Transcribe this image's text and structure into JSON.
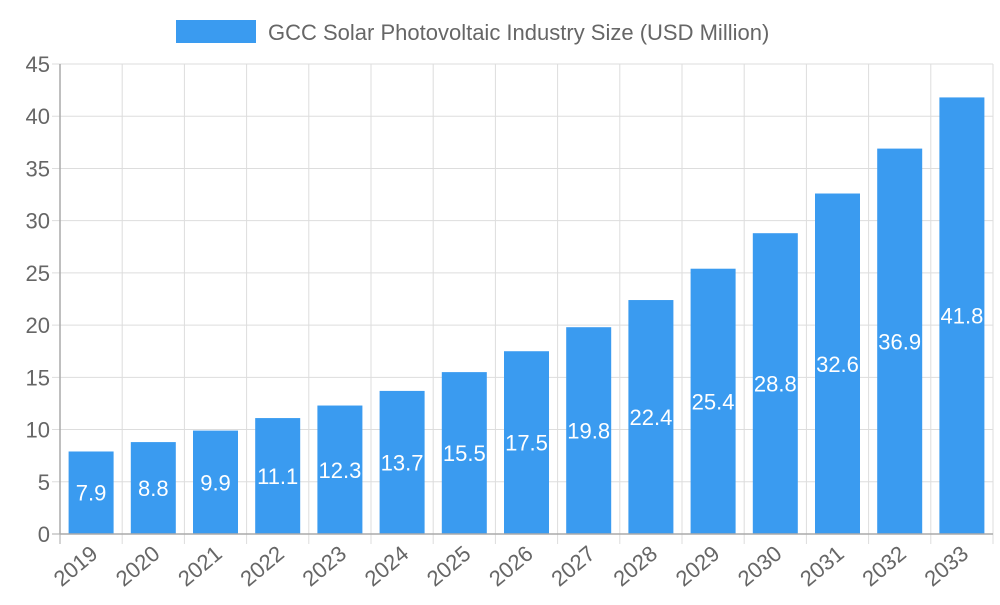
{
  "chart_data": {
    "type": "bar",
    "title": "",
    "categories": [
      "2019",
      "2020",
      "2021",
      "2022",
      "2023",
      "2024",
      "2025",
      "2026",
      "2027",
      "2028",
      "2029",
      "2030",
      "2031",
      "2032",
      "2033"
    ],
    "series": [
      {
        "name": "GCC Solar Photovoltaic Industry Size (USD Million)",
        "values": [
          7.9,
          8.8,
          9.9,
          11.1,
          12.3,
          13.7,
          15.5,
          17.5,
          19.8,
          22.4,
          25.4,
          28.8,
          32.6,
          36.9,
          41.8
        ],
        "color": "#3a9bf0"
      }
    ],
    "data_labels": [
      "7.9",
      "8.8",
      "9.9",
      "11.1",
      "12.3",
      "13.7",
      "15.5",
      "17.5",
      "19.8",
      "22.4",
      "25.4",
      "28.8",
      "32.6",
      "36.9",
      "41.8"
    ],
    "ylim": [
      0,
      45
    ],
    "yticks": [
      "0",
      "5",
      "10",
      "15",
      "20",
      "25",
      "30",
      "35",
      "40",
      "45"
    ],
    "xlabel": "",
    "ylabel": "",
    "grid": true,
    "legend_position": "top"
  }
}
